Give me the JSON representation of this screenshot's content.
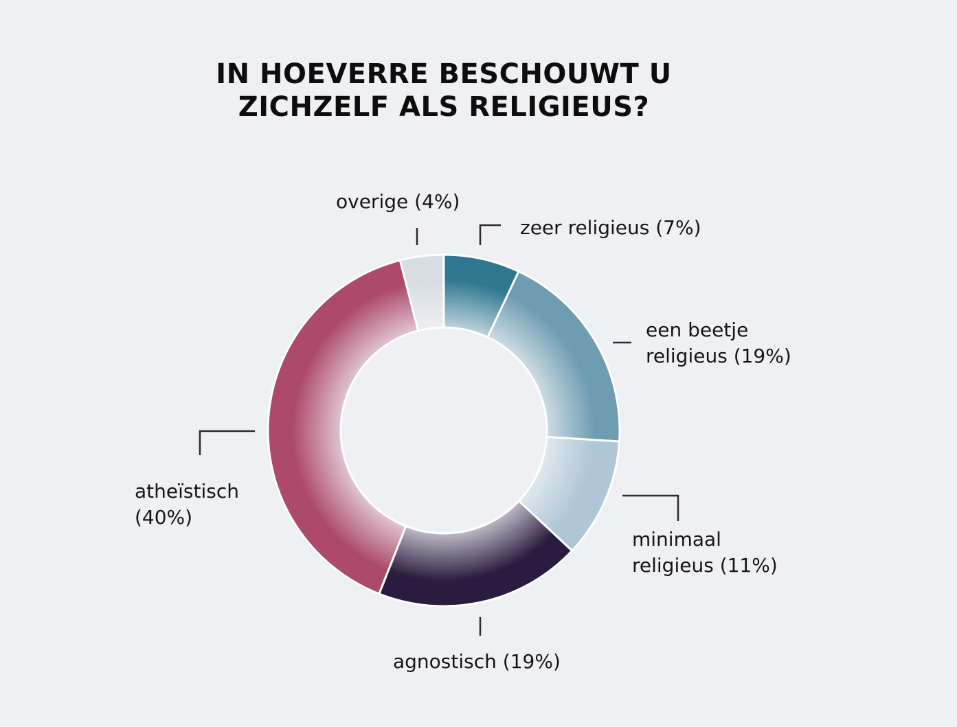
{
  "title_lines": [
    "IN HOEVERRE BESCHOUWT U",
    "ZICHZELF ALS RELIGIEUS?"
  ],
  "chart_data": {
    "type": "pie",
    "title": "IN HOEVERRE BESCHOUWT U ZICHZELF ALS RELIGIEUS?",
    "donut": true,
    "slices": [
      {
        "label": "zeer religieus",
        "value": 7,
        "color": "#2f7790",
        "label_lines": [
          "zeer religieus (7%)"
        ]
      },
      {
        "label": "een beetje religieus",
        "value": 19,
        "color": "#6e9cb1",
        "label_lines": [
          "een beetje",
          "religieus (19%)"
        ]
      },
      {
        "label": "minimaal religieus",
        "value": 11,
        "color": "#aec6d6",
        "label_lines": [
          "minimaal",
          "religieus (11%)"
        ]
      },
      {
        "label": "agnostisch",
        "value": 19,
        "color": "#2b1b3e",
        "label_lines": [
          "agnostisch (19%)"
        ]
      },
      {
        "label": "atheïstisch",
        "value": 40,
        "color": "#ad4a6c",
        "label_lines": [
          "atheïstisch",
          "(40%)"
        ]
      },
      {
        "label": "overige",
        "value": 4,
        "color": "#d8dce3",
        "label_lines": [
          "overige (4%)"
        ]
      }
    ]
  }
}
